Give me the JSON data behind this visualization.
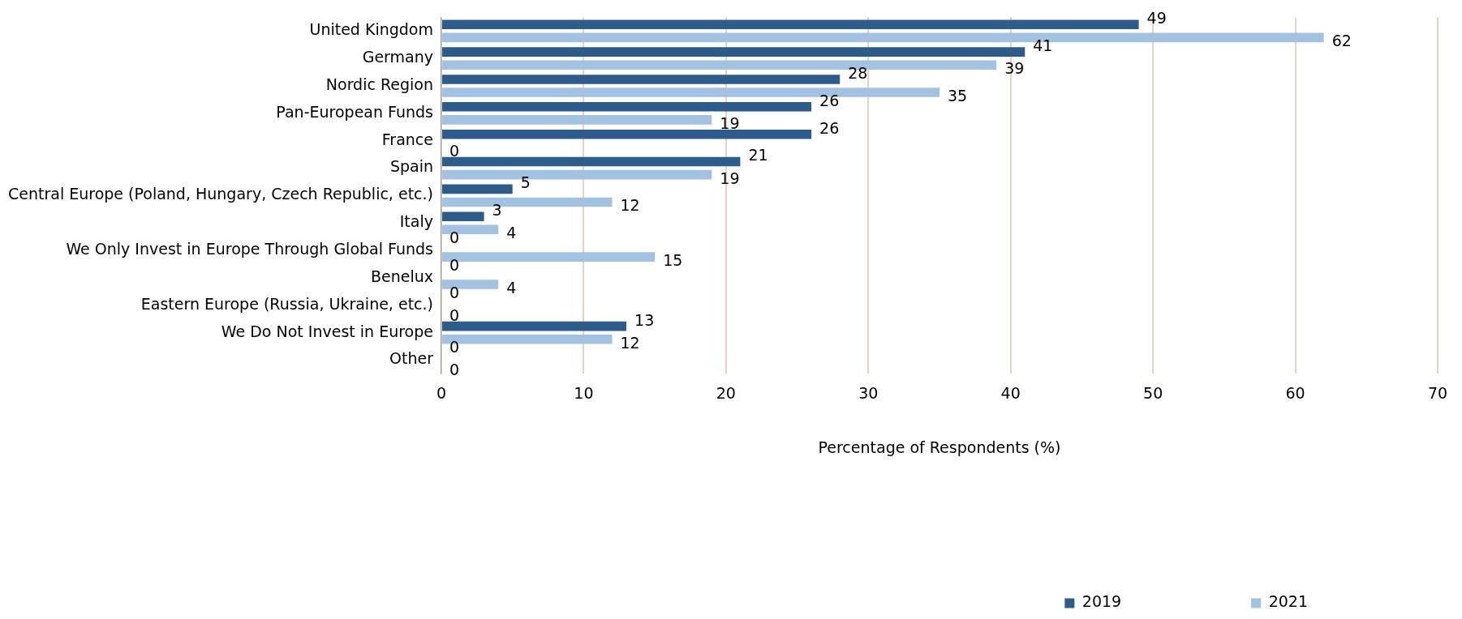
{
  "chart_data": {
    "type": "bar",
    "orientation": "horizontal",
    "xlabel": "Percentage of Respondents (%)",
    "categories": [
      "United Kingdom",
      "Germany",
      "Nordic Region",
      "Pan-European Funds",
      "France",
      "Spain",
      "Central Europe (Poland, Hungary, Czech Republic, etc.)",
      "Italy",
      "We Only Invest in Europe Through Global Funds",
      "Benelux",
      "Eastern Europe (Russia, Ukraine, etc.)",
      "We Do Not Invest in Europe",
      "Other"
    ],
    "series": [
      {
        "name": "2019",
        "color": "#2e5c8a",
        "values": [
          49,
          41,
          28,
          26,
          26,
          21,
          5,
          3,
          0,
          0,
          0,
          13,
          0
        ]
      },
      {
        "name": "2021",
        "color": "#a3c1e0",
        "values": [
          62,
          39,
          35,
          19,
          0,
          19,
          12,
          4,
          15,
          4,
          0,
          12,
          0
        ]
      }
    ],
    "xlim": [
      0,
      70
    ],
    "xticks": [
      0,
      10,
      20,
      30,
      40,
      50,
      60,
      70
    ],
    "grid": "x",
    "legend": "bottom",
    "data_labels": true
  }
}
